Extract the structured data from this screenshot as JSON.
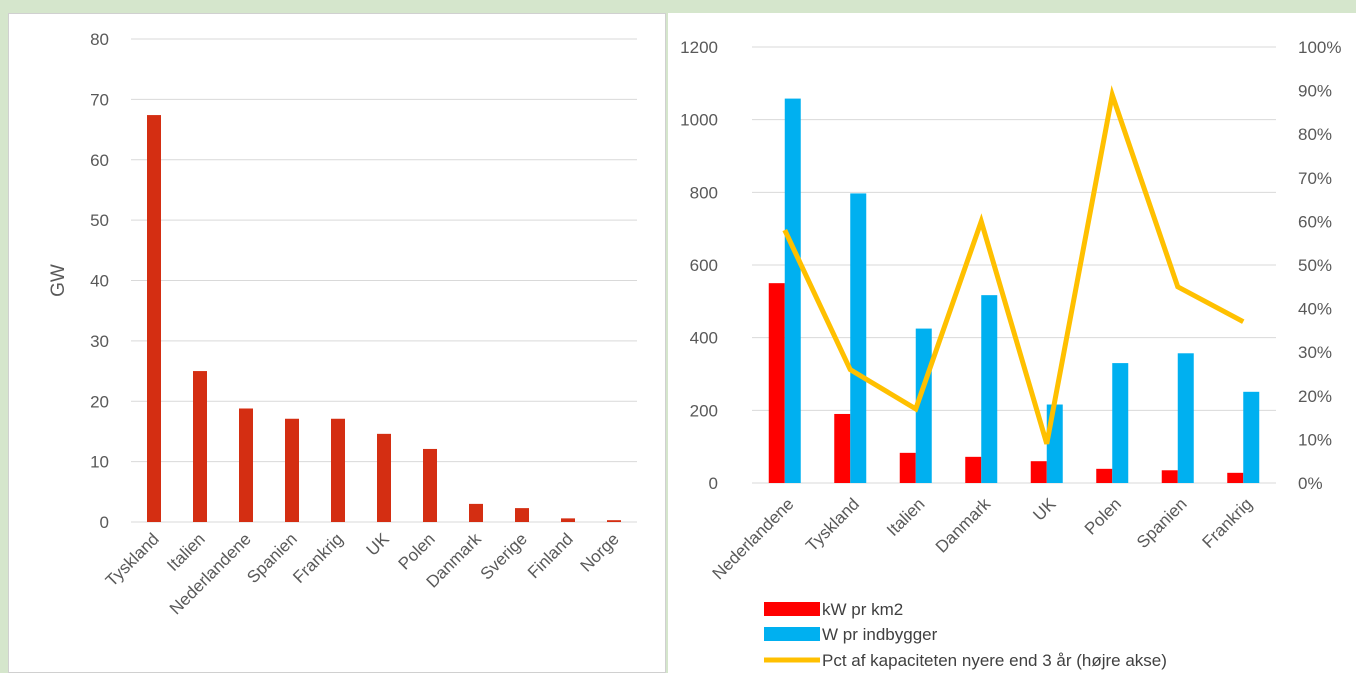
{
  "chart_data": [
    {
      "type": "bar",
      "ylabel": "GW",
      "ylim": [
        0,
        80
      ],
      "yticks": [
        0,
        10,
        20,
        30,
        40,
        50,
        60,
        70,
        80
      ],
      "grid": true,
      "categories": [
        "Tyskland",
        "Italien",
        "Nederlandene",
        "Spanien",
        "Frankrig",
        "UK",
        "Polen",
        "Danmark",
        "Sverige",
        "Finland",
        "Norge"
      ],
      "values": [
        67.4,
        25.0,
        18.8,
        17.1,
        17.1,
        14.6,
        12.1,
        3.0,
        2.3,
        0.6,
        0.3
      ],
      "color": "#d42e12"
    },
    {
      "type": "bar",
      "categories": [
        "Nederlandene",
        "Tyskland",
        "Italien",
        "Danmark",
        "UK",
        "Polen",
        "Spanien",
        "Frankrig"
      ],
      "ylim": [
        0,
        1200
      ],
      "yticks": [
        0,
        200,
        400,
        600,
        800,
        1000,
        1200
      ],
      "y2lim": [
        0,
        100
      ],
      "y2ticks": [
        "0%",
        "10%",
        "20%",
        "30%",
        "40%",
        "50%",
        "60%",
        "70%",
        "80%",
        "90%",
        "100%"
      ],
      "grid": true,
      "legend_position": "bottom",
      "series": [
        {
          "name": "kW pr km2",
          "type": "bar",
          "axis": "left",
          "color": "#ff0000",
          "values": [
            550,
            190,
            83,
            72,
            60,
            39,
            35,
            28
          ]
        },
        {
          "name": "W pr indbygger",
          "type": "bar",
          "axis": "left",
          "color": "#00b0f0",
          "values": [
            1058,
            797,
            425,
            517,
            216,
            330,
            357,
            251
          ]
        },
        {
          "name": "Pct af kapaciteten nyere end 3 år (højre akse)",
          "type": "line",
          "axis": "right",
          "color": "#ffc000",
          "values": [
            58,
            26,
            17,
            60,
            9,
            89,
            45,
            37
          ]
        }
      ]
    }
  ]
}
